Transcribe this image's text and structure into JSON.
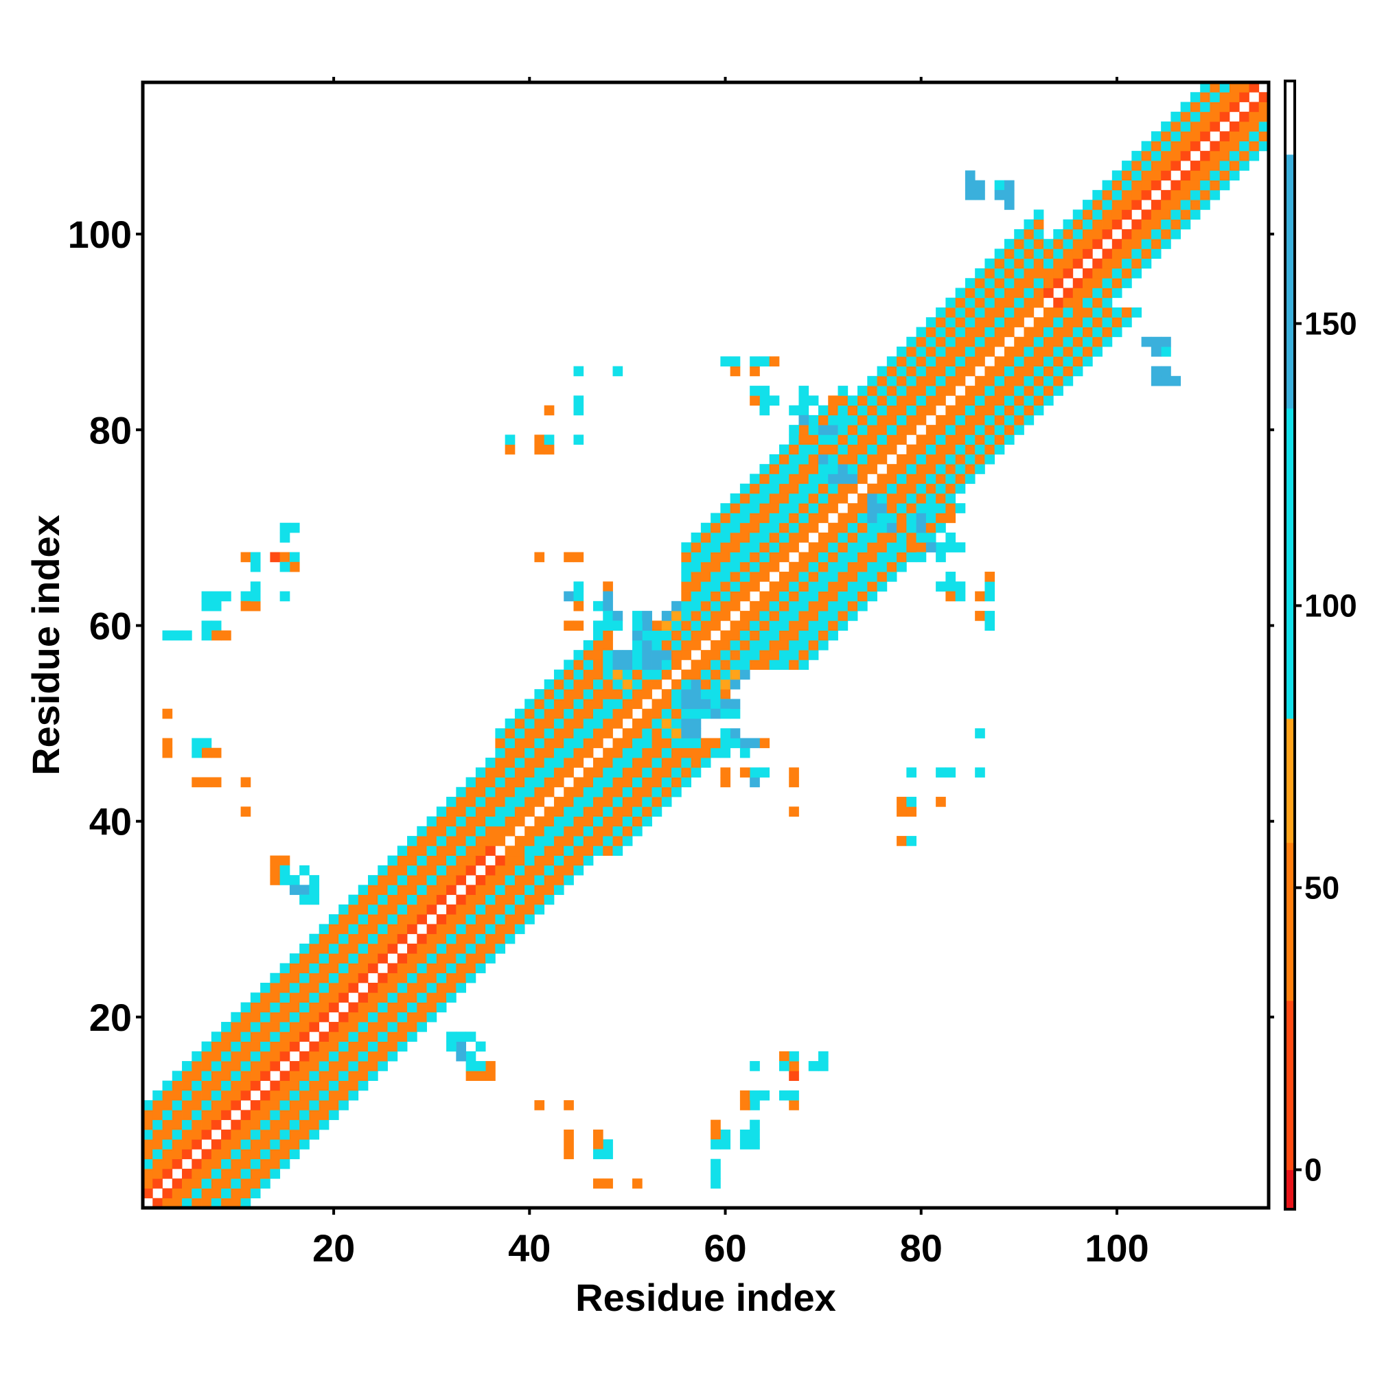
{
  "chart_data": {
    "type": "heatmap",
    "title": "",
    "xlabel": "Residue index",
    "ylabel": "Residue index",
    "x_ticks": [
      20,
      40,
      60,
      80,
      100
    ],
    "y_ticks": [
      20,
      40,
      60,
      80,
      100
    ],
    "xlim": [
      0.5,
      115.5
    ],
    "ylim": [
      0.5,
      115.5
    ],
    "grid": false,
    "legend": "colorbar-right",
    "colorbar": {
      "ticks": [
        0,
        50,
        100,
        150
      ],
      "range": [
        -7,
        193
      ],
      "stops": [
        {
          "from": -7,
          "to": 0,
          "color": "#e8141a"
        },
        {
          "from": 0,
          "to": 30,
          "color": "#ff4a12"
        },
        {
          "from": 30,
          "to": 58,
          "color": "#ff7f0e"
        },
        {
          "from": 58,
          "to": 80,
          "color": "#ffa31a"
        },
        {
          "from": 80,
          "to": 135,
          "color": "#12e0ea"
        },
        {
          "from": 135,
          "to": 180,
          "color": "#3ab0dc"
        },
        {
          "from": 180,
          "to": 193,
          "color": "#ffffff"
        }
      ],
      "colors": {
        "dark_blue": "#4a7fb8"
      }
    },
    "bands": [
      {
        "range": [
          1,
          36
        ],
        "offsets": [
          [
            1,
            20
          ],
          [
            2,
            45
          ],
          [
            3,
            55
          ],
          [
            4,
            100
          ],
          [
            5,
            55
          ],
          [
            6,
            45
          ],
          [
            7,
            100
          ],
          [
            8,
            45
          ],
          [
            9,
            55
          ],
          [
            10,
            100
          ]
        ]
      },
      {
        "range": [
          37,
          48
        ],
        "offsets": [
          [
            1,
            45
          ],
          [
            2,
            55
          ],
          [
            3,
            100
          ],
          [
            4,
            100
          ],
          [
            5,
            45
          ],
          [
            6,
            55
          ],
          [
            7,
            100
          ],
          [
            8,
            45
          ],
          [
            9,
            55
          ],
          [
            10,
            100
          ],
          [
            11,
            45
          ],
          [
            12,
            100
          ]
        ]
      },
      {
        "range": [
          49,
          55
        ],
        "offsets": [
          [
            1,
            45
          ],
          [
            2,
            55
          ],
          [
            3,
            100
          ],
          [
            4,
            45
          ],
          [
            5,
            100
          ],
          [
            6,
            70
          ],
          [
            7,
            150
          ]
        ]
      },
      {
        "range": [
          56,
          72
        ],
        "offsets": [
          [
            1,
            45
          ],
          [
            2,
            55
          ],
          [
            3,
            100
          ],
          [
            4,
            45
          ],
          [
            5,
            100
          ],
          [
            6,
            100
          ],
          [
            7,
            45
          ],
          [
            8,
            55
          ],
          [
            9,
            100
          ],
          [
            10,
            100
          ],
          [
            11,
            55
          ],
          [
            12,
            100
          ]
        ]
      },
      {
        "range": [
          73,
          92
        ],
        "offsets": [
          [
            1,
            45
          ],
          [
            2,
            55
          ],
          [
            3,
            100
          ],
          [
            4,
            45
          ],
          [
            5,
            55
          ],
          [
            6,
            100
          ],
          [
            7,
            45
          ],
          [
            8,
            100
          ],
          [
            9,
            55
          ],
          [
            10,
            100
          ]
        ]
      },
      {
        "range": [
          93,
          115
        ],
        "offsets": [
          [
            1,
            20
          ],
          [
            2,
            45
          ],
          [
            3,
            55
          ],
          [
            4,
            100
          ],
          [
            5,
            45
          ],
          [
            6,
            100
          ]
        ]
      }
    ],
    "points": [
      [
        3,
        51,
        30
      ],
      [
        3,
        48,
        55
      ],
      [
        3,
        47,
        55
      ],
      [
        7,
        48,
        55
      ],
      [
        8,
        47,
        55
      ],
      [
        7,
        44,
        45
      ],
      [
        8,
        44,
        45
      ],
      [
        11,
        44,
        30
      ],
      [
        11,
        41,
        30
      ],
      [
        4,
        59,
        100
      ],
      [
        5,
        59,
        100
      ],
      [
        8,
        60,
        100
      ],
      [
        9,
        59,
        55
      ],
      [
        8,
        62,
        100
      ],
      [
        9,
        63,
        100
      ],
      [
        8,
        63,
        100
      ],
      [
        11,
        63,
        100
      ],
      [
        12,
        62,
        55
      ],
      [
        12,
        64,
        100
      ],
      [
        11,
        67,
        55
      ],
      [
        12,
        67,
        100
      ],
      [
        14,
        67,
        5
      ],
      [
        15,
        67,
        100
      ],
      [
        16,
        67,
        100
      ],
      [
        16,
        66,
        55
      ],
      [
        15,
        66,
        100
      ],
      [
        15,
        63,
        100
      ],
      [
        15,
        69,
        100
      ],
      [
        16,
        70,
        100
      ],
      [
        15,
        70,
        100
      ],
      [
        14,
        36,
        55
      ],
      [
        15,
        36,
        55
      ],
      [
        14,
        35,
        45
      ],
      [
        14,
        34,
        45
      ],
      [
        15,
        34,
        150
      ],
      [
        16,
        34,
        150
      ],
      [
        16,
        33,
        150
      ],
      [
        17,
        33,
        150
      ],
      [
        17,
        35,
        100
      ],
      [
        18,
        34,
        100
      ],
      [
        18,
        33,
        100
      ],
      [
        18,
        32,
        100
      ],
      [
        17,
        32,
        100
      ],
      [
        32,
        18,
        100
      ],
      [
        33,
        18,
        100
      ],
      [
        34,
        18,
        100
      ],
      [
        33,
        17,
        150
      ],
      [
        33,
        16,
        150
      ],
      [
        34,
        16,
        100
      ],
      [
        34,
        15,
        100
      ],
      [
        35,
        15,
        100
      ],
      [
        34,
        14,
        45
      ],
      [
        35,
        14,
        45
      ],
      [
        36,
        14,
        45
      ],
      [
        41,
        11,
        30
      ],
      [
        44,
        11,
        30
      ],
      [
        44,
        7,
        55
      ],
      [
        44,
        6,
        55
      ],
      [
        47,
        7,
        55
      ],
      [
        48,
        7,
        100
      ],
      [
        47,
        6,
        100
      ],
      [
        48,
        6,
        100
      ],
      [
        47,
        3,
        55
      ],
      [
        48,
        3,
        55
      ],
      [
        51,
        3,
        30
      ],
      [
        59,
        8,
        55
      ],
      [
        59,
        7,
        100
      ],
      [
        60,
        7,
        100
      ],
      [
        59,
        4,
        100
      ],
      [
        59,
        3,
        100
      ],
      [
        62,
        11,
        45
      ],
      [
        62,
        12,
        55
      ],
      [
        63,
        12,
        100
      ],
      [
        63,
        11,
        100
      ],
      [
        64,
        12,
        100
      ],
      [
        63,
        8,
        100
      ],
      [
        63,
        7,
        100
      ],
      [
        62,
        7,
        100
      ],
      [
        63,
        15,
        100
      ],
      [
        66,
        12,
        100
      ],
      [
        67,
        12,
        100
      ],
      [
        67,
        11,
        55
      ],
      [
        67,
        14,
        5
      ],
      [
        66,
        16,
        55
      ],
      [
        67,
        16,
        100
      ],
      [
        67,
        15,
        55
      ],
      [
        69,
        15,
        100
      ],
      [
        70,
        15,
        100
      ],
      [
        70,
        16,
        100
      ],
      [
        66,
        15,
        100
      ],
      [
        38,
        78,
        55
      ],
      [
        38,
        79,
        100
      ],
      [
        41,
        78,
        55
      ],
      [
        42,
        78,
        55
      ],
      [
        41,
        79,
        55
      ],
      [
        42,
        79,
        100
      ],
      [
        45,
        79,
        100
      ],
      [
        42,
        82,
        45
      ],
      [
        45,
        82,
        100
      ],
      [
        45,
        83,
        100
      ],
      [
        45,
        86,
        100
      ],
      [
        49,
        86,
        100
      ],
      [
        41,
        67,
        30
      ],
      [
        44,
        67,
        55
      ],
      [
        45,
        64,
        100
      ],
      [
        44,
        63,
        100
      ],
      [
        45,
        63,
        55
      ],
      [
        44,
        60,
        55
      ],
      [
        48,
        64,
        30
      ],
      [
        48,
        63,
        55
      ],
      [
        47,
        62,
        100
      ],
      [
        48,
        62,
        150
      ],
      [
        48,
        61,
        150
      ],
      [
        49,
        61,
        150
      ],
      [
        47,
        60,
        100
      ],
      [
        48,
        60,
        100
      ],
      [
        49,
        60,
        55
      ],
      [
        47,
        57,
        55
      ],
      [
        48,
        57,
        100
      ],
      [
        48,
        56,
        150
      ],
      [
        49,
        56,
        150
      ],
      [
        50,
        56,
        100
      ],
      [
        50,
        55,
        55
      ],
      [
        50,
        54,
        70
      ],
      [
        51,
        61,
        55
      ],
      [
        52,
        61,
        150
      ],
      [
        52,
        60,
        55
      ],
      [
        53,
        60,
        55
      ],
      [
        51,
        59,
        100
      ],
      [
        52,
        59,
        150
      ],
      [
        53,
        59,
        100
      ],
      [
        51,
        57,
        100
      ],
      [
        52,
        57,
        150
      ],
      [
        53,
        57,
        150
      ],
      [
        54,
        57,
        150
      ],
      [
        53,
        56,
        150
      ],
      [
        54,
        56,
        100
      ],
      [
        55,
        53,
        100
      ],
      [
        56,
        53,
        150
      ],
      [
        55,
        52,
        100
      ],
      [
        56,
        52,
        150
      ],
      [
        57,
        52,
        150
      ],
      [
        57,
        51,
        100
      ],
      [
        58,
        52,
        150
      ],
      [
        59,
        52,
        100
      ],
      [
        60,
        52,
        150
      ],
      [
        60,
        51,
        100
      ],
      [
        61,
        51,
        100
      ],
      [
        59,
        51,
        150
      ],
      [
        58,
        51,
        100
      ],
      [
        55,
        50,
        100
      ],
      [
        56,
        50,
        150
      ],
      [
        57,
        50,
        150
      ],
      [
        56,
        49,
        150
      ],
      [
        57,
        49,
        150
      ],
      [
        58,
        48,
        55
      ],
      [
        56,
        48,
        100
      ],
      [
        60,
        49,
        100
      ],
      [
        61,
        49,
        150
      ],
      [
        62,
        48,
        150
      ],
      [
        61,
        48,
        100
      ],
      [
        63,
        48,
        150
      ],
      [
        64,
        48,
        55
      ],
      [
        60,
        47,
        100
      ],
      [
        60,
        45,
        55
      ],
      [
        62,
        45,
        55
      ],
      [
        63,
        45,
        100
      ],
      [
        63,
        44,
        150
      ],
      [
        67,
        45,
        55
      ],
      [
        67,
        41,
        30
      ],
      [
        61,
        86,
        30
      ],
      [
        61,
        87,
        100
      ],
      [
        64,
        87,
        55
      ],
      [
        65,
        87,
        55
      ],
      [
        64,
        84,
        100
      ],
      [
        64,
        83,
        55
      ],
      [
        65,
        83,
        100
      ],
      [
        64,
        82,
        100
      ],
      [
        68,
        84,
        100
      ],
      [
        69,
        83,
        100
      ],
      [
        68,
        82,
        100
      ],
      [
        68,
        81,
        150
      ],
      [
        68,
        80,
        55
      ],
      [
        69,
        80,
        55
      ],
      [
        69,
        79,
        55
      ],
      [
        70,
        80,
        150
      ],
      [
        71,
        80,
        150
      ],
      [
        72,
        80,
        100
      ],
      [
        72,
        79,
        150
      ],
      [
        71,
        83,
        55
      ],
      [
        72,
        82,
        100
      ],
      [
        70,
        76,
        100
      ],
      [
        71,
        75,
        45
      ],
      [
        72,
        77,
        150
      ],
      [
        72,
        76,
        150
      ],
      [
        73,
        76,
        100
      ],
      [
        73,
        75,
        150
      ],
      [
        75,
        72,
        150
      ],
      [
        76,
        72,
        150
      ],
      [
        75,
        71,
        150
      ],
      [
        76,
        71,
        100
      ],
      [
        77,
        70,
        150
      ],
      [
        75,
        70,
        100
      ],
      [
        77,
        72,
        55
      ],
      [
        78,
        71,
        55
      ],
      [
        79,
        72,
        55
      ],
      [
        79,
        71,
        100
      ],
      [
        80,
        70,
        150
      ],
      [
        80,
        69,
        100
      ],
      [
        78,
        68,
        100
      ],
      [
        79,
        68,
        45
      ],
      [
        80,
        68,
        55
      ],
      [
        80,
        67,
        100
      ],
      [
        82,
        71,
        55
      ],
      [
        82,
        68,
        100
      ],
      [
        83,
        68,
        100
      ],
      [
        82,
        67,
        100
      ],
      [
        82,
        64,
        100
      ],
      [
        83,
        64,
        100
      ],
      [
        83,
        63,
        55
      ],
      [
        84,
        63,
        100
      ],
      [
        86,
        63,
        55
      ],
      [
        87,
        64,
        100
      ],
      [
        87,
        63,
        100
      ],
      [
        86,
        61,
        55
      ],
      [
        87,
        60,
        100
      ],
      [
        79,
        45,
        100
      ],
      [
        82,
        45,
        100
      ],
      [
        83,
        45,
        100
      ],
      [
        86,
        45,
        100
      ],
      [
        86,
        49,
        100
      ],
      [
        78,
        42,
        55
      ],
      [
        79,
        42,
        100
      ],
      [
        78,
        41,
        55
      ],
      [
        82,
        42,
        45
      ],
      [
        78,
        38,
        55
      ],
      [
        79,
        38,
        100
      ],
      [
        85,
        106,
        150
      ],
      [
        85,
        105,
        150
      ],
      [
        86,
        105,
        150
      ],
      [
        85,
        104,
        150
      ],
      [
        86,
        104,
        150
      ],
      [
        88,
        105,
        100
      ],
      [
        89,
        105,
        150
      ],
      [
        88,
        104,
        150
      ],
      [
        89,
        104,
        100
      ],
      [
        89,
        103,
        150
      ],
      [
        103,
        89,
        150
      ],
      [
        104,
        89,
        150
      ],
      [
        105,
        89,
        150
      ],
      [
        104,
        88,
        150
      ],
      [
        104,
        86,
        150
      ],
      [
        105,
        86,
        150
      ],
      [
        104,
        85,
        150
      ],
      [
        105,
        85,
        150
      ],
      [
        106,
        85,
        150
      ]
    ]
  }
}
